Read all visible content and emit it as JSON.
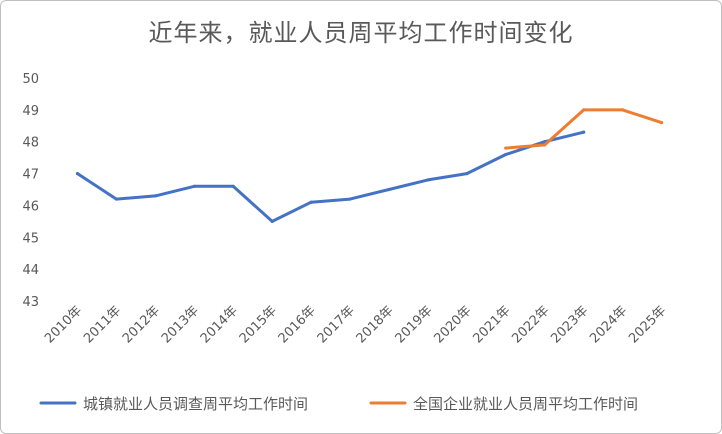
{
  "chart_data": {
    "type": "line",
    "title": "近年来，就业人员周平均工作时间变化",
    "xlabel": "",
    "ylabel": "",
    "categories": [
      "2010年",
      "2011年",
      "2012年",
      "2013年",
      "2014年",
      "2015年",
      "2016年",
      "2017年",
      "2018年",
      "2019年",
      "2020年",
      "2021年",
      "2022年",
      "2023年",
      "2024年",
      "2025年"
    ],
    "yticks": [
      43,
      44,
      45,
      46,
      47,
      48,
      49,
      50
    ],
    "ylim": [
      43,
      50
    ],
    "grid": false,
    "legend_position": "bottom",
    "series": [
      {
        "name": "城镇就业人员调查周平均工作时间",
        "color": "#4472c4",
        "values": [
          47.0,
          46.2,
          46.3,
          46.6,
          46.6,
          45.5,
          46.1,
          46.2,
          46.5,
          46.8,
          47.0,
          47.6,
          48.0,
          48.3,
          null,
          null
        ]
      },
      {
        "name": "全国企业就业人员周平均工作时间",
        "color": "#ed7d31",
        "values": [
          null,
          null,
          null,
          null,
          null,
          null,
          null,
          null,
          null,
          null,
          null,
          47.8,
          47.9,
          49.0,
          49.0,
          48.6
        ]
      }
    ]
  }
}
